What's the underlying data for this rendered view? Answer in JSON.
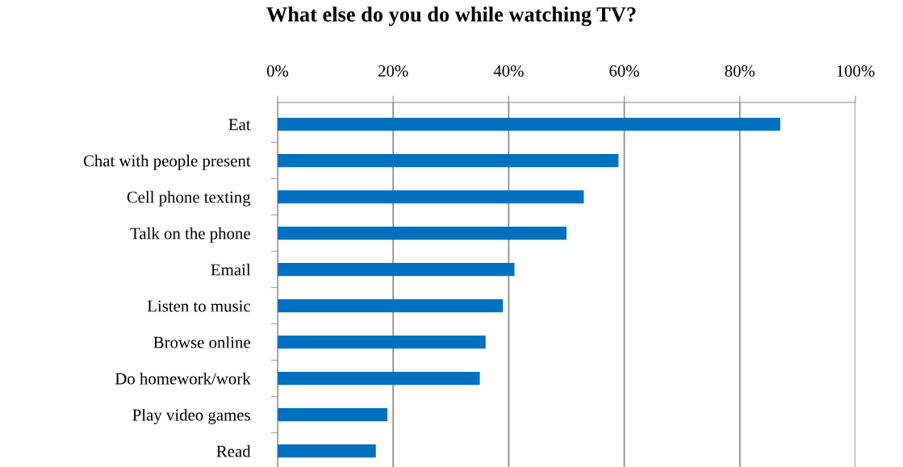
{
  "chart_data": {
    "type": "bar",
    "orientation": "horizontal",
    "title": "What else do you do while watching TV?",
    "categories": [
      "Eat",
      "Chat with people present",
      "Cell phone texting",
      "Talk on the phone",
      "Email",
      "Listen to music",
      "Browse online",
      "Do homework/work",
      "Play video games",
      "Read"
    ],
    "values": [
      87,
      59,
      53,
      50,
      41,
      39,
      36,
      35,
      19,
      17
    ],
    "color": "#0070c0",
    "xlim": [
      0,
      100
    ],
    "xticks": [
      {
        "value": 0,
        "label": "0%"
      },
      {
        "value": 20,
        "label": "20%"
      },
      {
        "value": 40,
        "label": "40%"
      },
      {
        "value": 60,
        "label": "60%"
      },
      {
        "value": 80,
        "label": "80%"
      },
      {
        "value": 100,
        "label": "100%"
      }
    ],
    "grid": "x"
  }
}
